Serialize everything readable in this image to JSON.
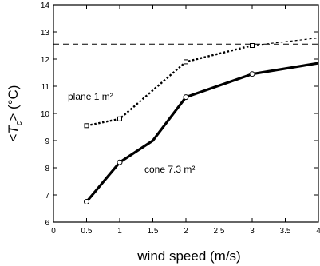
{
  "chart_data": {
    "type": "line",
    "xlabel": "wind speed  (m/s)",
    "ylabel_prefix": "<",
    "ylabel_symbol": "T",
    "ylabel_sub": "c",
    "ylabel_suffix": "> (°C)",
    "xlim": [
      0,
      4
    ],
    "ylim": [
      6,
      14
    ],
    "x_ticks": [
      "0",
      "0.5",
      "1",
      "1.5",
      "2",
      "2.5",
      "3",
      "3.5",
      "4"
    ],
    "y_ticks": [
      "6",
      "7",
      "8",
      "9",
      "10",
      "11",
      "12",
      "13",
      "14"
    ],
    "reference_line": {
      "y": 12.55,
      "style": "dashed"
    },
    "series": [
      {
        "name": "plane 1 m²",
        "line_style": "dotted",
        "marker": "square",
        "x": [
          0.5,
          1,
          2,
          3
        ],
        "y": [
          9.55,
          9.8,
          11.9,
          12.5
        ],
        "extension": {
          "x": [
            3,
            4
          ],
          "y": [
            12.5,
            12.78
          ]
        }
      },
      {
        "name": "cone 7.3 m²",
        "line_style": "solid",
        "marker": "circle",
        "x": [
          0.5,
          1,
          1.5,
          2,
          3,
          4
        ],
        "y": [
          6.75,
          8.2,
          9.0,
          10.6,
          11.45,
          11.85
        ]
      }
    ]
  }
}
